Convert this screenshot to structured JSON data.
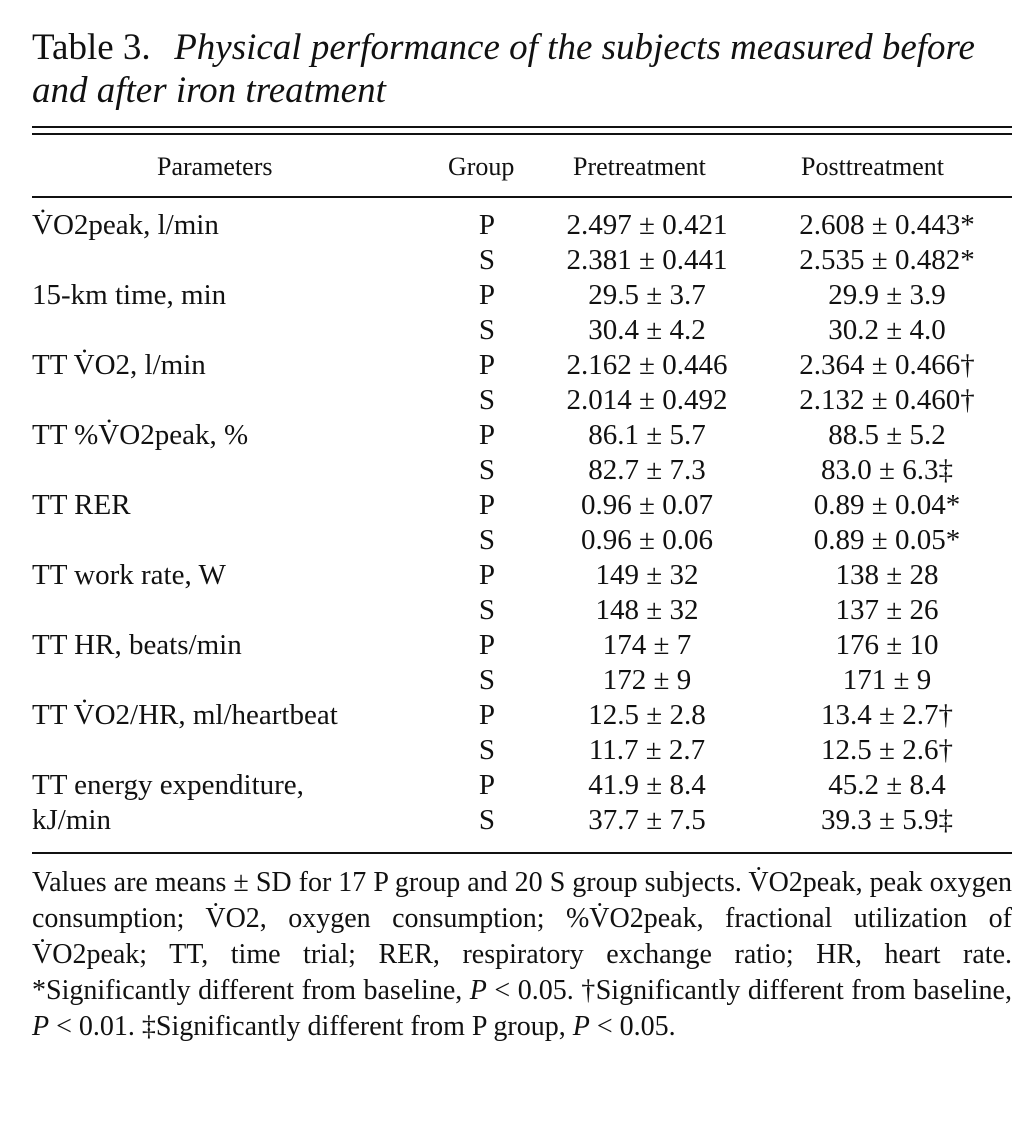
{
  "table": {
    "label": "Table 3.",
    "caption": "Physical performance of the subjects measured before and after iron treatment",
    "headers": {
      "parameters": "Parameters",
      "group": "Group",
      "pre": "Pretreatment",
      "post": "Posttreatment"
    },
    "rows": [
      {
        "param": "V̇O2peak, l/min",
        "group": "P",
        "pre": "2.497 ± 0.421",
        "post": "2.608 ± 0.443*"
      },
      {
        "param": "",
        "group": "S",
        "pre": "2.381 ± 0.441",
        "post": "2.535 ± 0.482*"
      },
      {
        "param": "15-km time, min",
        "group": "P",
        "pre": "29.5 ± 3.7",
        "post": "29.9 ± 3.9"
      },
      {
        "param": "",
        "group": "S",
        "pre": "30.4 ± 4.2",
        "post": "30.2 ± 4.0"
      },
      {
        "param": "TT V̇O2, l/min",
        "group": "P",
        "pre": "2.162 ± 0.446",
        "post": "2.364 ± 0.466†"
      },
      {
        "param": "",
        "group": "S",
        "pre": "2.014 ± 0.492",
        "post": "2.132 ± 0.460†"
      },
      {
        "param": "TT %V̇O2peak, %",
        "group": "P",
        "pre": "86.1 ± 5.7",
        "post": "88.5 ± 5.2"
      },
      {
        "param": "",
        "group": "S",
        "pre": "82.7 ± 7.3",
        "post": "83.0 ± 6.3‡"
      },
      {
        "param": "TT RER",
        "group": "P",
        "pre": "0.96 ± 0.07",
        "post": "0.89 ± 0.04*"
      },
      {
        "param": "",
        "group": "S",
        "pre": "0.96 ± 0.06",
        "post": "0.89 ± 0.05*"
      },
      {
        "param": "TT work rate, W",
        "group": "P",
        "pre": "149 ± 32",
        "post": "138 ± 28"
      },
      {
        "param": "",
        "group": "S",
        "pre": "148 ± 32",
        "post": "137 ± 26"
      },
      {
        "param": "TT HR, beats/min",
        "group": "P",
        "pre": "174 ± 7",
        "post": "176 ± 10"
      },
      {
        "param": "",
        "group": "S",
        "pre": "172 ± 9",
        "post": "171 ± 9"
      },
      {
        "param": "TT V̇O2/HR, ml/heartbeat",
        "group": "P",
        "pre": "12.5 ± 2.8",
        "post": "13.4 ± 2.7†"
      },
      {
        "param": "",
        "group": "S",
        "pre": "11.7 ± 2.7",
        "post": "12.5 ± 2.6†"
      },
      {
        "param": "TT energy expenditure,",
        "group": "P",
        "pre": "41.9 ± 8.4",
        "post": "45.2 ± 8.4"
      },
      {
        "param": "kJ/min",
        "group": "S",
        "pre": "37.7 ± 7.5",
        "post": "39.3 ± 5.9‡"
      }
    ],
    "footnote": {
      "line1": "Values are means ± SD for 17 P group and 20 S group subjects. V̇O2peak, peak oxygen consumption; V̇O2, oxygen consumption; %V̇O2peak, fractional utilization of V̇O2peak; TT, time trial; RER, respiratory exchange ratio; HR, heart rate. *Significantly different from baseline, ",
      "p1": "P",
      "t1": " < 0.05. †Significantly different from baseline, ",
      "p2": "P",
      "t2": " < 0.01. ‡Significantly different from P group, ",
      "p3": "P",
      "t3": " < 0.05."
    }
  }
}
